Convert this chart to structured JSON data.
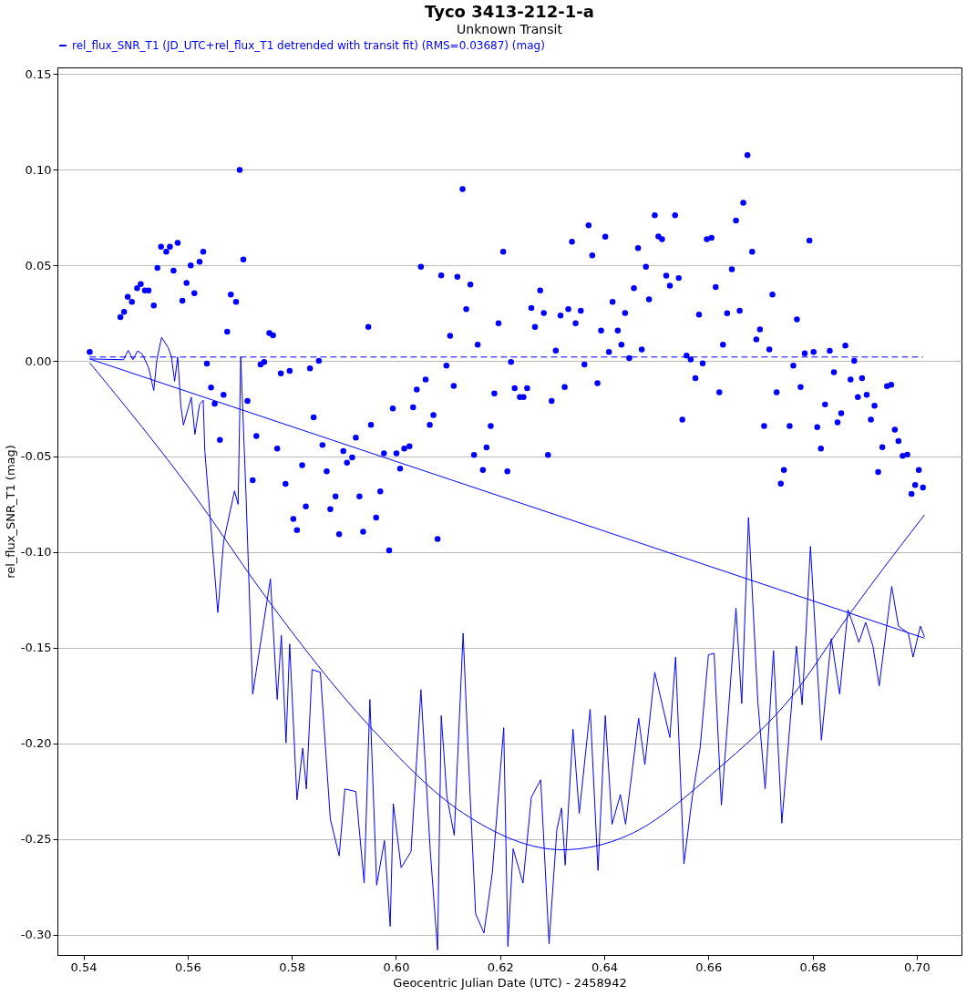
{
  "chart_data": {
    "type": "scatter",
    "title": "Tyco 3413-212-1-a",
    "subtitle": "Unknown Transit",
    "xlabel": "Geocentric Julian Date (UTC) - 2458942",
    "ylabel": "rel_flux_SNR_T1 (mag)",
    "xlim": [
      0.535,
      0.7086
    ],
    "ylim": [
      -0.3106,
      0.1534
    ],
    "xticks": [
      {
        "value": 0.54,
        "label": "0.54"
      },
      {
        "value": 0.56,
        "label": "0.56"
      },
      {
        "value": 0.58,
        "label": "0.58"
      },
      {
        "value": 0.6,
        "label": "0.60"
      },
      {
        "value": 0.62,
        "label": "0.62"
      },
      {
        "value": 0.64,
        "label": "0.64"
      },
      {
        "value": 0.66,
        "label": "0.66"
      },
      {
        "value": 0.68,
        "label": "0.68"
      },
      {
        "value": 0.7,
        "label": "0.70"
      }
    ],
    "yticks": [
      {
        "value": 0.15,
        "label": "0.15"
      },
      {
        "value": 0.1,
        "label": "0.10"
      },
      {
        "value": 0.05,
        "label": "0.05"
      },
      {
        "value": 0,
        "label": "0.00"
      },
      {
        "value": -0.05,
        "label": "-0.05"
      },
      {
        "value": -0.1,
        "label": "-0.10"
      },
      {
        "value": -0.15,
        "label": "-0.15"
      },
      {
        "value": -0.2,
        "label": "-0.20"
      },
      {
        "value": -0.25,
        "label": "-0.25"
      },
      {
        "value": -0.3,
        "label": "-0.30"
      }
    ],
    "grid": "y",
    "legend": "top",
    "series": [
      {
        "name": "rel_flux_SNR_T1 (JD_UTC+rel_flux_T1 detrended with transit fit) (RMS=0.03687) (mag)",
        "type": "scatter",
        "marker": "circle",
        "color": "#0000ff",
        "x": [
          0.5412,
          0.5471,
          0.5478,
          0.5485,
          0.5493,
          0.5503,
          0.551,
          0.5518,
          0.5525,
          0.5535,
          0.5542,
          0.5549,
          0.5559,
          0.5566,
          0.5573,
          0.5581,
          0.559,
          0.5598,
          0.5606,
          0.5613,
          0.5623,
          0.563,
          0.5637,
          0.5645,
          0.5652,
          0.5662,
          0.5669,
          0.5676,
          0.5683,
          0.5693,
          0.57,
          0.5707,
          0.5715,
          0.5725,
          0.5732,
          0.574,
          0.5747,
          0.5757,
          0.5764,
          0.5772,
          0.5779,
          0.5788,
          0.5796,
          0.5803,
          0.581,
          0.582,
          0.5827,
          0.5835,
          0.5842,
          0.5852,
          0.5859,
          0.5867,
          0.5874,
          0.5884,
          0.5891,
          0.5899,
          0.5906,
          0.5916,
          0.5923,
          0.593,
          0.5937,
          0.5947,
          0.5952,
          0.5962,
          0.597,
          0.5977,
          0.5987,
          0.5994,
          0.6001,
          0.6008,
          0.6016,
          0.6026,
          0.6033,
          0.604,
          0.6048,
          0.6057,
          0.6065,
          0.6072,
          0.608,
          0.6087,
          0.6097,
          0.6104,
          0.6111,
          0.6118,
          0.6128,
          0.6135,
          0.6143,
          0.615,
          0.6157,
          0.6167,
          0.6174,
          0.6182,
          0.6189,
          0.6197,
          0.6206,
          0.6214,
          0.6221,
          0.6228,
          0.6238,
          0.6245,
          0.6252,
          0.626,
          0.6267,
          0.6277,
          0.6284,
          0.6292,
          0.6299,
          0.6307,
          0.6316,
          0.6324,
          0.6331,
          0.6338,
          0.6345,
          0.6355,
          0.6362,
          0.637,
          0.6377,
          0.6387,
          0.6394,
          0.6402,
          0.6409,
          0.6416,
          0.6426,
          0.6433,
          0.644,
          0.6448,
          0.6457,
          0.6465,
          0.6472,
          0.648,
          0.6486,
          0.6497,
          0.6504,
          0.6511,
          0.6519,
          0.6526,
          0.6536,
          0.6543,
          0.655,
          0.6558,
          0.6566,
          0.6575,
          0.6582,
          0.6589,
          0.6597,
          0.6606,
          0.6614,
          0.6621,
          0.6628,
          0.6636,
          0.6645,
          0.6653,
          0.666,
          0.6667,
          0.6675,
          0.6684,
          0.6692,
          0.6699,
          0.6707,
          0.6717,
          0.6723,
          0.6731,
          0.6739,
          0.6745,
          0.6756,
          0.6763,
          0.677,
          0.6777,
          0.6785,
          0.6794,
          0.6802,
          0.6809,
          0.6816,
          0.6824,
          0.6833,
          0.6841,
          0.6848,
          0.6855,
          0.6863,
          0.6873,
          0.688,
          0.6887,
          0.6895,
          0.6904,
          0.6912,
          0.6919,
          0.6926,
          0.6934,
          0.6943,
          0.6951,
          0.6958,
          0.6965,
          0.6973,
          0.6982,
          0.699,
          0.6997,
          0.7004,
          0.7012
        ],
        "values": [
          0.0047,
          0.0229,
          0.0256,
          0.0335,
          0.0308,
          0.038,
          0.0401,
          0.0368,
          0.0368,
          0.0289,
          0.0486,
          0.0597,
          0.057,
          0.0597,
          0.0472,
          0.0617,
          0.0314,
          0.0407,
          0.0499,
          0.0354,
          0.0518,
          0.057,
          -0.0014,
          -0.0139,
          -0.0224,
          -0.0413,
          -0.0177,
          0.0152,
          0.0347,
          0.0308,
          0.0998,
          0.053,
          -0.021,
          -0.0624,
          -0.0393,
          -0.0019,
          -0.0006,
          0.0145,
          0.0133,
          -0.0459,
          -0.0065,
          -0.0643,
          -0.0052,
          -0.0827,
          -0.0885,
          -0.0545,
          -0.0761,
          -0.0039,
          -0.0295,
          0.0,
          -0.044,
          -0.0578,
          -0.0775,
          -0.0709,
          -0.0906,
          -0.0472,
          -0.0532,
          -0.0505,
          -0.0401,
          -0.0709,
          -0.0893,
          0.0177,
          -0.0335,
          -0.0819,
          -0.0682,
          -0.0484,
          -0.0991,
          -0.0249,
          -0.0484,
          -0.0563,
          -0.0459,
          -0.0447,
          -0.0243,
          -0.015,
          0.0492,
          -0.0098,
          -0.0335,
          -0.0283,
          -0.0931,
          0.0447,
          -0.0025,
          0.0131,
          -0.0131,
          0.0439,
          0.0898,
          0.027,
          0.0399,
          -0.0492,
          0.0085,
          -0.057,
          -0.0453,
          -0.0341,
          -0.017,
          0.0197,
          0.057,
          -0.0578,
          -0.0006,
          -0.0143,
          -0.0189,
          -0.0189,
          -0.0143,
          0.0276,
          0.0177,
          0.0368,
          0.025,
          -0.0492,
          -0.021,
          0.0054,
          0.0237,
          -0.0137,
          0.027,
          0.0623,
          0.0197,
          0.0262,
          -0.0019,
          0.0709,
          0.0551,
          -0.0117,
          0.0158,
          0.0649,
          0.0046,
          0.0308,
          0.0158,
          0.0085,
          0.025,
          0.0014,
          0.038,
          0.059,
          0.006,
          0.0492,
          0.0322,
          0.0761,
          0.065,
          0.0636,
          0.0445,
          0.0393,
          0.0761,
          0.0433,
          -0.0307,
          0.0027,
          0.0007,
          -0.0091,
          0.0242,
          -0.0013,
          0.0636,
          0.0643,
          0.0386,
          -0.0164,
          0.0085,
          0.0249,
          0.0479,
          0.0734,
          0.0262,
          0.0827,
          0.1076,
          0.057,
          0.0112,
          0.0164,
          -0.0341,
          0.006,
          0.0347,
          -0.0164,
          -0.0642,
          -0.057,
          -0.0341,
          -0.0025,
          0.0217,
          -0.0137,
          0.0039,
          0.0629,
          0.0046,
          -0.0346,
          -0.0458,
          -0.0228,
          0.0053,
          -0.0059,
          -0.0321,
          -0.0274,
          0.008,
          -0.0098,
          0.0,
          -0.0189,
          -0.0091,
          -0.0177,
          -0.0307,
          -0.0235,
          -0.0581,
          -0.0451,
          -0.0132,
          -0.0125,
          -0.036,
          -0.0419,
          -0.0497,
          -0.049,
          -0.0695,
          -0.0649,
          -0.057,
          -0.0662
        ]
      },
      {
        "type": "line",
        "line_style": "solid",
        "color": "#0000ff",
        "x": [
          0.5412,
          0.5477,
          0.5486,
          0.5495,
          0.5504,
          0.5513,
          0.5525,
          0.5535,
          0.5541,
          0.555,
          0.5563,
          0.5569,
          0.5575,
          0.5581,
          0.5587,
          0.5592,
          0.5607,
          0.5614,
          0.5623,
          0.563,
          0.5633,
          0.5658,
          0.5669,
          0.569,
          0.5697,
          0.5702,
          0.5712,
          0.5725,
          0.5759,
          0.5772,
          0.578,
          0.5789,
          0.5796,
          0.581,
          0.5821,
          0.5828,
          0.5839,
          0.5855,
          0.5874,
          0.5891,
          0.5902,
          0.5923,
          0.5939,
          0.595,
          0.5963,
          0.5978,
          0.5989,
          0.5995,
          0.601,
          0.6029,
          0.6048,
          0.6066,
          0.608,
          0.6087,
          0.6098,
          0.6112,
          0.6129,
          0.614,
          0.6153,
          0.6169,
          0.6185,
          0.6207,
          0.6215,
          0.6225,
          0.6244,
          0.626,
          0.6278,
          0.6294,
          0.6309,
          0.6318,
          0.6325,
          0.634,
          0.6352,
          0.6373,
          0.6388,
          0.6402,
          0.6415,
          0.6431,
          0.6441,
          0.6466,
          0.6478,
          0.6497,
          0.6526,
          0.6537,
          0.6553,
          0.6569,
          0.6584,
          0.66,
          0.6611,
          0.6625,
          0.6653,
          0.6664,
          0.6677,
          0.6695,
          0.6709,
          0.6725,
          0.6741,
          0.6769,
          0.678,
          0.6796,
          0.6817,
          0.6836,
          0.6852,
          0.6868,
          0.6879,
          0.6889,
          0.6902,
          0.6916,
          0.6928,
          0.6952,
          0.6965,
          0.6984,
          0.6993,
          0.7007,
          0.7015
        ],
        "values": [
          0.001,
          0.0006,
          0.0055,
          0.0006,
          0.0052,
          0.0035,
          -0.0035,
          -0.0155,
          0.0006,
          0.0123,
          0.0068,
          0.002,
          -0.0107,
          0.002,
          -0.0235,
          -0.0336,
          -0.019,
          -0.0384,
          -0.0227,
          -0.0206,
          -0.047,
          -0.1316,
          -0.0947,
          -0.068,
          -0.075,
          0.002,
          -0.069,
          -0.1742,
          -0.114,
          -0.177,
          -0.1435,
          -0.1997,
          -0.148,
          -0.2295,
          -0.2025,
          -0.2238,
          -0.1614,
          -0.1628,
          -0.2395,
          -0.2588,
          -0.2238,
          -0.2252,
          -0.273,
          -0.177,
          -0.2741,
          -0.2508,
          -0.2956,
          -0.2315,
          -0.265,
          -0.2565,
          -0.1719,
          -0.2565,
          -0.308,
          -0.1855,
          -0.2281,
          -0.248,
          -0.1424,
          -0.2125,
          -0.2891,
          -0.2991,
          -0.2678,
          -0.1918,
          -0.3061,
          -0.2551,
          -0.273,
          -0.2281,
          -0.219,
          -0.3047,
          -0.2451,
          -0.2338,
          -0.2636,
          -0.1926,
          -0.2366,
          -0.1821,
          -0.2664,
          -0.1855,
          -0.2423,
          -0.2267,
          -0.2423,
          -0.1869,
          -0.2111,
          -0.1628,
          -0.1969,
          -0.1549,
          -0.263,
          -0.2281,
          -0.2025,
          -0.1537,
          -0.1529,
          -0.2323,
          -0.1293,
          -0.1792,
          -0.0819,
          -0.1784,
          -0.2238,
          -0.1515,
          -0.2417,
          -0.1492,
          -0.1798,
          -0.097,
          -0.1983,
          -0.1452,
          -0.1742,
          -0.1301,
          -0.1387,
          -0.1472,
          -0.1367,
          -0.1492,
          -0.1699,
          -0.1179,
          -0.1387,
          -0.1424,
          -0.1549,
          -0.1387,
          -0.1443
        ]
      },
      {
        "type": "line",
        "line_style": "solid",
        "color": "#0000ff",
        "x": [
          0.5412,
          0.7015
        ],
        "values": [
          0.001,
          -0.145
        ]
      },
      {
        "type": "line",
        "line_style": "solid",
        "color": "#0000ff",
        "x": [
          0.5412,
          0.561,
          0.5749,
          0.595,
          0.613,
          0.632,
          0.6446,
          0.6616,
          0.6764,
          0.687,
          0.7015
        ],
        "values": [
          -0.001,
          -0.0691,
          -0.1231,
          -0.1912,
          -0.2366,
          -0.2556,
          -0.248,
          -0.2139,
          -0.1742,
          -0.1328,
          -0.0805
        ]
      },
      {
        "type": "line",
        "line_style": "dashed",
        "color": "#0000ff",
        "x": [
          0.5412,
          0.7012
        ],
        "values": [
          0.002,
          0.002
        ]
      }
    ]
  }
}
